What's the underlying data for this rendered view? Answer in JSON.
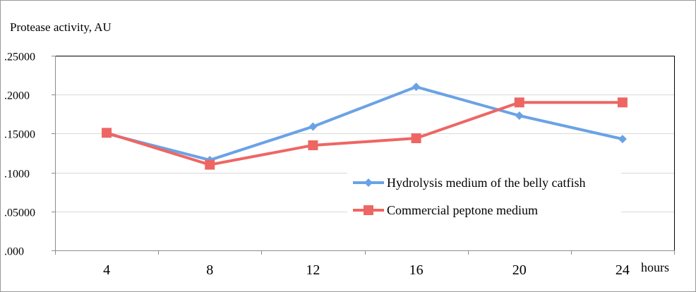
{
  "chart_data": {
    "type": "line",
    "ylabel": "Protease activity,  AU",
    "xlabel": "hours",
    "categories": [
      "4",
      "8",
      "12",
      "16",
      "20",
      "24"
    ],
    "y_ticks": [
      ".000",
      ".05000",
      ".1000",
      ".15000",
      ".2000",
      ".25000"
    ],
    "ylim": [
      0,
      0.25
    ],
    "grid": true,
    "legend_position": "right",
    "series": [
      {
        "name": "Hydrolysis medium of the belly catfish",
        "values": [
          0.15,
          0.116,
          0.159,
          0.21,
          0.173,
          0.143
        ],
        "color": "#6aa2e6",
        "marker": "diamond"
      },
      {
        "name": "Commercial peptone medium",
        "values": [
          0.151,
          0.11,
          0.135,
          0.144,
          0.19,
          0.19
        ],
        "color": "#ee6663",
        "marker": "square"
      }
    ]
  }
}
